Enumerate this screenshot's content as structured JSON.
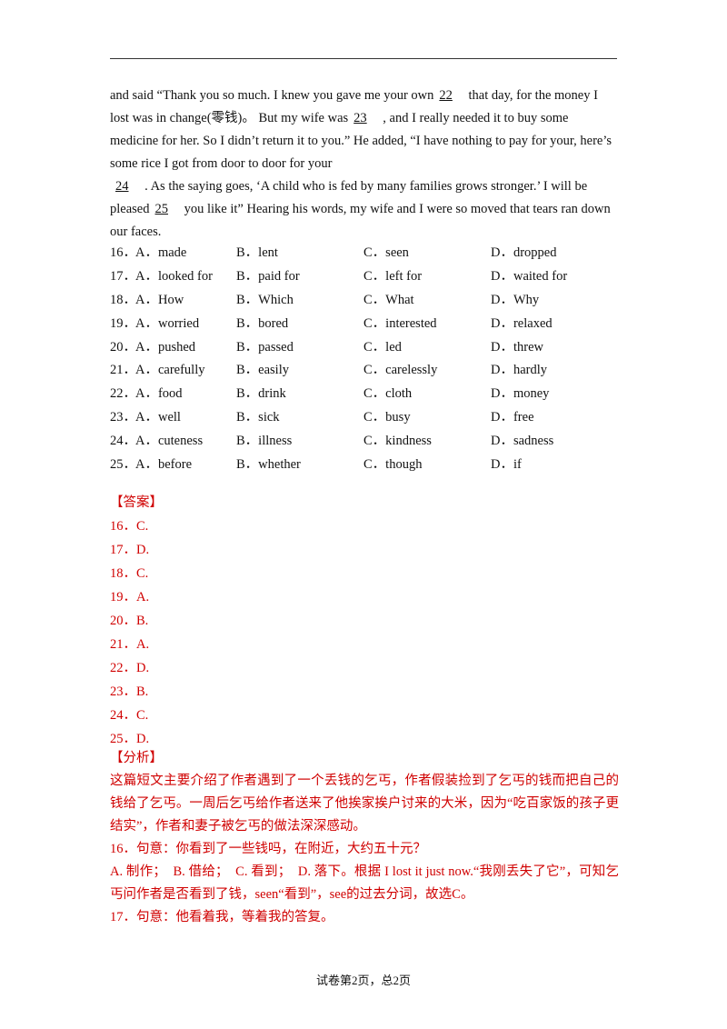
{
  "passage": {
    "lines": [
      [
        "and said “Thank you so much. I knew you gave me your own",
        {
          "blank": "22"
        },
        " that day, for the money I"
      ],
      [
        "lost was in change(零钱)。 But my wife was",
        {
          "blank": "23"
        },
        " , and I really needed it to buy some"
      ],
      [
        "medicine for her. So I didn’t return it to you.” He added, “I have nothing to pay for your, here’s"
      ],
      [
        "some rice I got from door to door for your"
      ],
      [
        {
          "blank": "24"
        },
        " . As the saying goes, ‘A child who is fed by many families grows stronger.’ I will be"
      ],
      [
        "pleased",
        {
          "blank": "25"
        },
        " you like it” Hearing his words, my wife and I were so moved that tears ran down"
      ],
      [
        "our faces."
      ]
    ]
  },
  "questions": [
    {
      "number": "16．",
      "options": [
        "A．made",
        "B．lent",
        "C．seen",
        "D．dropped"
      ]
    },
    {
      "number": "17．",
      "options": [
        "A．looked for",
        "B．paid for",
        "C．left for",
        "D．waited for"
      ]
    },
    {
      "number": "18．",
      "options": [
        "A．How",
        "B．Which",
        "C．What",
        "D．Why"
      ]
    },
    {
      "number": "19．",
      "options": [
        "A．worried",
        "B．bored",
        "C．interested",
        "D．relaxed"
      ]
    },
    {
      "number": "20．",
      "options": [
        "A．pushed",
        "B．passed",
        "C．led",
        "D．threw"
      ]
    },
    {
      "number": "21．",
      "options": [
        "A．carefully",
        "B．easily",
        "C．carelessly",
        "D．hardly"
      ]
    },
    {
      "number": "22．",
      "options": [
        "A．food",
        "B．drink",
        "C．cloth",
        "D．money"
      ]
    },
    {
      "number": "23．",
      "options": [
        "A．well",
        "B．sick",
        "C．busy",
        "D．free"
      ]
    },
    {
      "number": "24．",
      "options": [
        "A．cuteness",
        "B．illness",
        "C．kindness",
        "D．sadness"
      ]
    },
    {
      "number": "25．",
      "options": [
        "A．before",
        "B．whether",
        "C．though",
        "D．if"
      ]
    }
  ],
  "answer": {
    "heading": "【答案】",
    "items": [
      "16．C.",
      "17．D.",
      "18．C.",
      "19．A.",
      "20．B.",
      "21．A.",
      "22．D.",
      "23．B.",
      "24．C.",
      "25．D."
    ]
  },
  "analysis": {
    "heading": "【分析】",
    "paragraphs": [
      "这篇短文主要介绍了作者遇到了一个丢钱的乞丐，作者假装捡到了乞丐的钱而把自己的钱给了乞丐。一周后乞丐给作者送来了他挨家挨户讨来的大米，因为“吃百家饭的孩子更结实”，作者和妻子被乞丐的做法深深感动。",
      "16．句意：你看到了一些钱吗，在附近，大约五十元？",
      "A. 制作；　B. 借给；　C. 看到；　D. 落下。根据 I lost it just now.“我刚丢失了它”，可知乞丐问作者是否看到了钱，seen“看到”，see的过去分词，故选C。",
      "17．句意：他看着我，等着我的答复。"
    ]
  },
  "footer": "试卷第2页，总2页"
}
